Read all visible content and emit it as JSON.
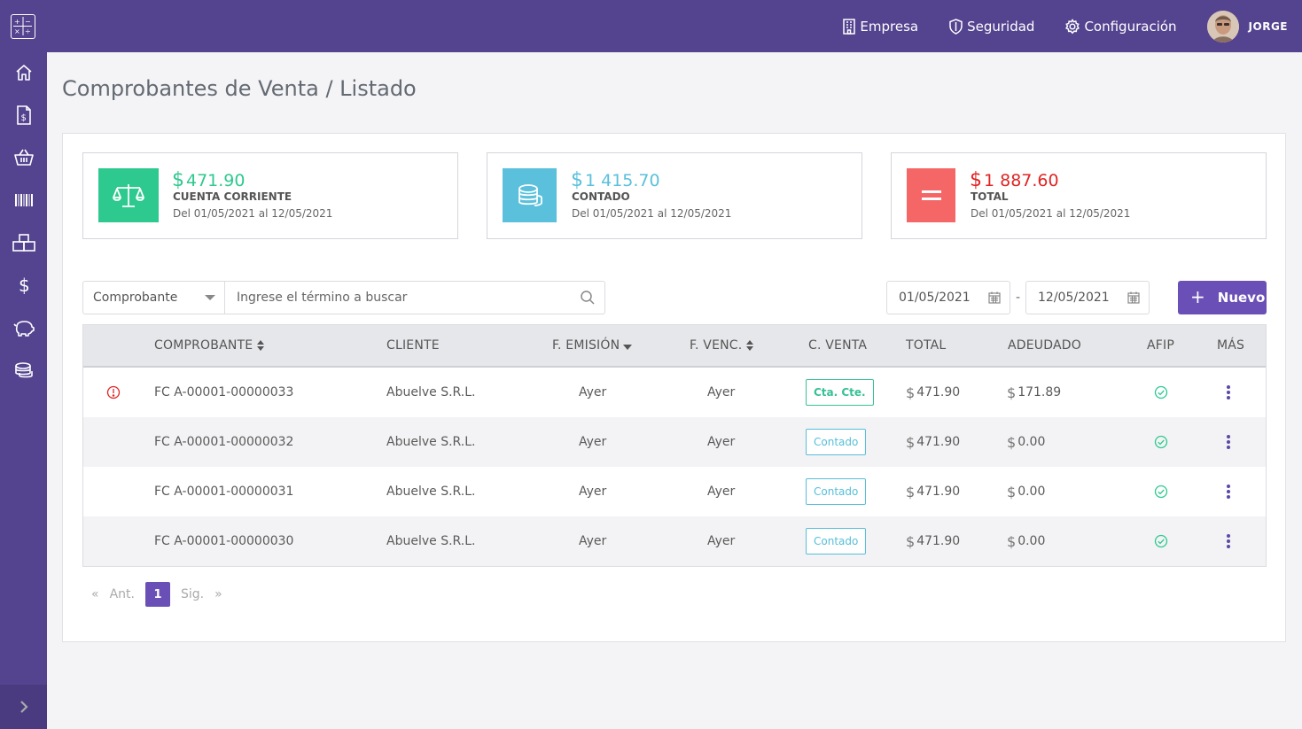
{
  "header": {
    "links": [
      {
        "label": "Empresa",
        "icon": "building-icon"
      },
      {
        "label": "Seguridad",
        "icon": "shield-icon"
      },
      {
        "label": "Configuración",
        "icon": "gear-icon"
      }
    ],
    "user": {
      "name": "JORGE"
    }
  },
  "sidebar": {
    "items": [
      {
        "icon": "home-icon"
      },
      {
        "icon": "invoice-icon"
      },
      {
        "icon": "basket-icon"
      },
      {
        "icon": "barcode-icon"
      },
      {
        "icon": "boxes-icon"
      },
      {
        "icon": "dollar-icon"
      },
      {
        "icon": "piggy-bank-icon"
      },
      {
        "icon": "coins-icon"
      }
    ],
    "toggle_icon": "chevron-right-icon"
  },
  "page": {
    "title": "Comprobantes de Venta / Listado"
  },
  "stats": [
    {
      "currency": "$",
      "amount": "471.90",
      "label": "CUENTA CORRIENTE",
      "range": "Del 01/05/2021 al 12/05/2021",
      "color": "#2ec98f",
      "icon": "scale-icon"
    },
    {
      "currency": "$",
      "amount": "1 415.70",
      "label": "CONTADO",
      "range": "Del 01/05/2021 al 12/05/2021",
      "color": "#5ac0dc",
      "icon": "coins-icon"
    },
    {
      "currency": "$",
      "amount": "1 887.60",
      "label": "TOTAL",
      "range": "Del 01/05/2021 al 12/05/2021",
      "color": "#f56767",
      "amountColor": "#e02424",
      "icon": "equals-icon"
    }
  ],
  "filter": {
    "field": "Comprobante",
    "placeholder": "Ingrese el término a buscar",
    "date_from": "01/05/2021",
    "date_separator": "-",
    "date_to": "12/05/2021",
    "new_label": "Nuevo"
  },
  "table": {
    "columns": [
      "COMPROBANTE",
      "CLIENTE",
      "F. EMISIÓN",
      "F. VENC.",
      "C. VENTA",
      "TOTAL",
      "ADEUDADO",
      "AFIP",
      "MÁS"
    ],
    "rows": [
      {
        "alert": true,
        "comprobante": "FC A-00001-00000033",
        "cliente": "Abuelve S.R.L.",
        "emision": "Ayer",
        "vencimiento": "Ayer",
        "venta": "Cta. Cte.",
        "venta_type": "cta",
        "total": "471.90",
        "adeudado": "171.89"
      },
      {
        "alert": false,
        "comprobante": "FC A-00001-00000032",
        "cliente": "Abuelve S.R.L.",
        "emision": "Ayer",
        "vencimiento": "Ayer",
        "venta": "Contado",
        "venta_type": "contado",
        "total": "471.90",
        "adeudado": "0.00"
      },
      {
        "alert": false,
        "comprobante": "FC A-00001-00000031",
        "cliente": "Abuelve S.R.L.",
        "emision": "Ayer",
        "vencimiento": "Ayer",
        "venta": "Contado",
        "venta_type": "contado",
        "total": "471.90",
        "adeudado": "0.00"
      },
      {
        "alert": false,
        "comprobante": "FC A-00001-00000030",
        "cliente": "Abuelve S.R.L.",
        "emision": "Ayer",
        "vencimiento": "Ayer",
        "venta": "Contado",
        "venta_type": "contado",
        "total": "471.90",
        "adeudado": "0.00"
      }
    ]
  },
  "pager": {
    "first": "«",
    "prev": "Ant.",
    "current": "1",
    "next": "Sig.",
    "last": "»"
  }
}
